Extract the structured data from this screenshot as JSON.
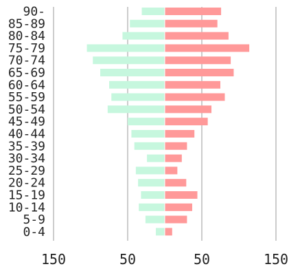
{
  "colors": {
    "left": "#c6f7de",
    "right": "#ff9999",
    "grid": "#cccccc",
    "text": "#222222"
  },
  "chart_data": {
    "type": "bar",
    "orientation": "horizontal",
    "diverging": true,
    "categories": [
      "90-",
      "85-89",
      "80-84",
      "75-79",
      "70-74",
      "65-69",
      "60-64",
      "55-59",
      "50-54",
      "45-49",
      "40-44",
      "35-39",
      "30-34",
      "25-29",
      "20-24",
      "15-19",
      "10-14",
      "5-9",
      "0-4"
    ],
    "series": [
      {
        "side": "left",
        "values": [
          31,
          47,
          57,
          105,
          97,
          87,
          75,
          72,
          77,
          50,
          45,
          41,
          24,
          39,
          36,
          32,
          35,
          26,
          12
        ]
      },
      {
        "side": "right",
        "values": [
          76,
          71,
          86,
          114,
          89,
          93,
          75,
          81,
          63,
          58,
          40,
          30,
          23,
          17,
          29,
          44,
          37,
          30,
          10
        ]
      }
    ],
    "x_ticks": [
      {
        "value": -150,
        "label": "150"
      },
      {
        "value": -50,
        "label": "50"
      },
      {
        "value": 50,
        "label": "50"
      },
      {
        "value": 150,
        "label": "150"
      }
    ],
    "xlim": [
      -150,
      150
    ],
    "grid": true,
    "legend": "none"
  }
}
